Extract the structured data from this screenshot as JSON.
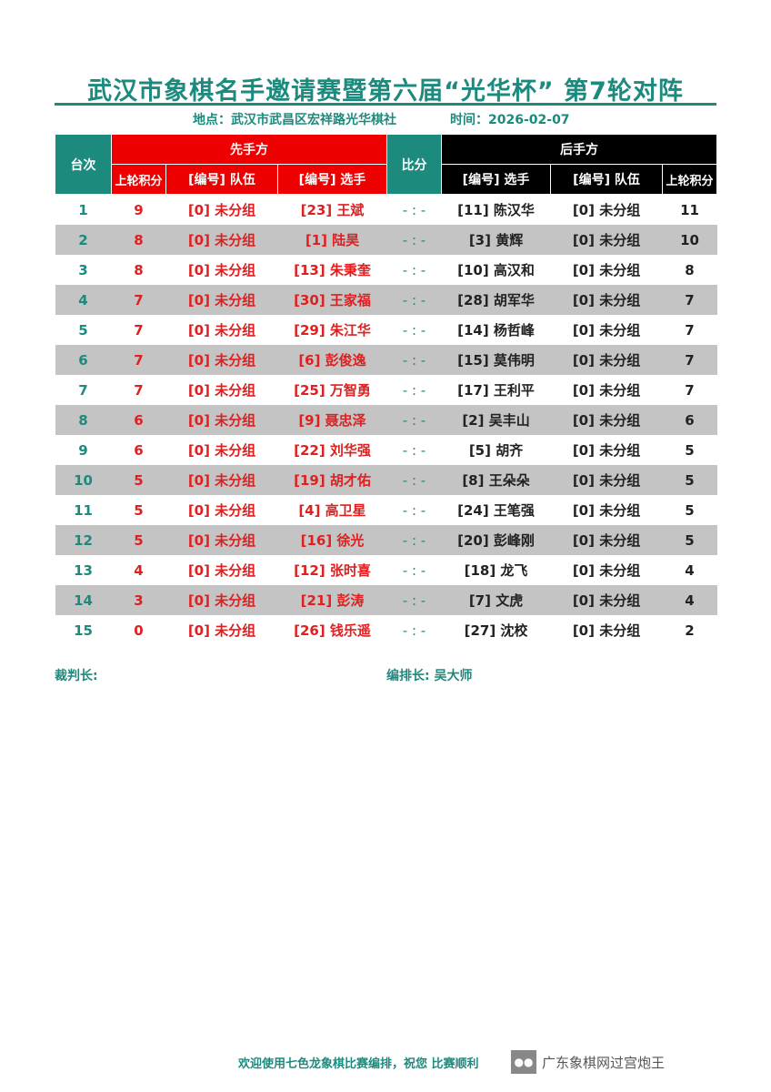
{
  "title": "武汉市象棋名手邀请赛暨第六届“光华杯” 第7轮对阵",
  "location": "地点：武汉市武昌区宏祥路光华棋社",
  "time": "时间：2026-02-07",
  "headers": {
    "table_no": "台次",
    "first": "先手方",
    "score": "比分",
    "second": "后手方",
    "prev_points": "上轮积分",
    "team": "[编号] 队伍",
    "player": "[编号] 选手"
  },
  "rows": [
    {
      "no": "1",
      "p1": "9",
      "t1": "[0] 未分组",
      "n1": "[23] 王斌",
      "score": "- : -",
      "n2": "[11] 陈汉华",
      "t2": "[0] 未分组",
      "p2": "11"
    },
    {
      "no": "2",
      "p1": "8",
      "t1": "[0] 未分组",
      "n1": "[1] 陆昊",
      "score": "- : -",
      "n2": "[3] 黄辉",
      "t2": "[0] 未分组",
      "p2": "10"
    },
    {
      "no": "3",
      "p1": "8",
      "t1": "[0] 未分组",
      "n1": "[13] 朱秉奎",
      "score": "- : -",
      "n2": "[10] 高汉和",
      "t2": "[0] 未分组",
      "p2": "8"
    },
    {
      "no": "4",
      "p1": "7",
      "t1": "[0] 未分组",
      "n1": "[30] 王家福",
      "score": "- : -",
      "n2": "[28] 胡军华",
      "t2": "[0] 未分组",
      "p2": "7"
    },
    {
      "no": "5",
      "p1": "7",
      "t1": "[0] 未分组",
      "n1": "[29] 朱江华",
      "score": "- : -",
      "n2": "[14] 杨哲峰",
      "t2": "[0] 未分组",
      "p2": "7"
    },
    {
      "no": "6",
      "p1": "7",
      "t1": "[0] 未分组",
      "n1": "[6] 彭俊逸",
      "score": "- : -",
      "n2": "[15] 莫伟明",
      "t2": "[0] 未分组",
      "p2": "7"
    },
    {
      "no": "7",
      "p1": "7",
      "t1": "[0] 未分组",
      "n1": "[25] 万智勇",
      "score": "- : -",
      "n2": "[17] 王利平",
      "t2": "[0] 未分组",
      "p2": "7"
    },
    {
      "no": "8",
      "p1": "6",
      "t1": "[0] 未分组",
      "n1": "[9] 聂忠泽",
      "score": "- : -",
      "n2": "[2] 吴丰山",
      "t2": "[0] 未分组",
      "p2": "6"
    },
    {
      "no": "9",
      "p1": "6",
      "t1": "[0] 未分组",
      "n1": "[22] 刘华强",
      "score": "- : -",
      "n2": "[5] 胡齐",
      "t2": "[0] 未分组",
      "p2": "5"
    },
    {
      "no": "10",
      "p1": "5",
      "t1": "[0] 未分组",
      "n1": "[19] 胡才佑",
      "score": "- : -",
      "n2": "[8] 王朵朵",
      "t2": "[0] 未分组",
      "p2": "5"
    },
    {
      "no": "11",
      "p1": "5",
      "t1": "[0] 未分组",
      "n1": "[4] 高卫星",
      "score": "- : -",
      "n2": "[24] 王笔强",
      "t2": "[0] 未分组",
      "p2": "5"
    },
    {
      "no": "12",
      "p1": "5",
      "t1": "[0] 未分组",
      "n1": "[16] 徐光",
      "score": "- : -",
      "n2": "[20] 彭峰刚",
      "t2": "[0] 未分组",
      "p2": "5"
    },
    {
      "no": "13",
      "p1": "4",
      "t1": "[0] 未分组",
      "n1": "[12] 张时喜",
      "score": "- : -",
      "n2": "[18] 龙飞",
      "t2": "[0] 未分组",
      "p2": "4"
    },
    {
      "no": "14",
      "p1": "3",
      "t1": "[0] 未分组",
      "n1": "[21] 彭涛",
      "score": "- : -",
      "n2": "[7] 文虎",
      "t2": "[0] 未分组",
      "p2": "4"
    },
    {
      "no": "15",
      "p1": "0",
      "t1": "[0] 未分组",
      "n1": "[26] 钱乐遥",
      "score": "- : -",
      "n2": "[27] 沈校",
      "t2": "[0] 未分组",
      "p2": "2"
    }
  ],
  "chief_referee": "裁判长:",
  "arranger": "编排长: 吴大师",
  "bottom_text": "欢迎使用七色龙象棋比赛编排，祝您 比赛顺利",
  "watermark": "广东象棋网过宫炮王",
  "colors": {
    "teal": "#1d8a7e",
    "red": "#ee0000",
    "black": "#000000",
    "alt_row": "#c4c4c4"
  }
}
